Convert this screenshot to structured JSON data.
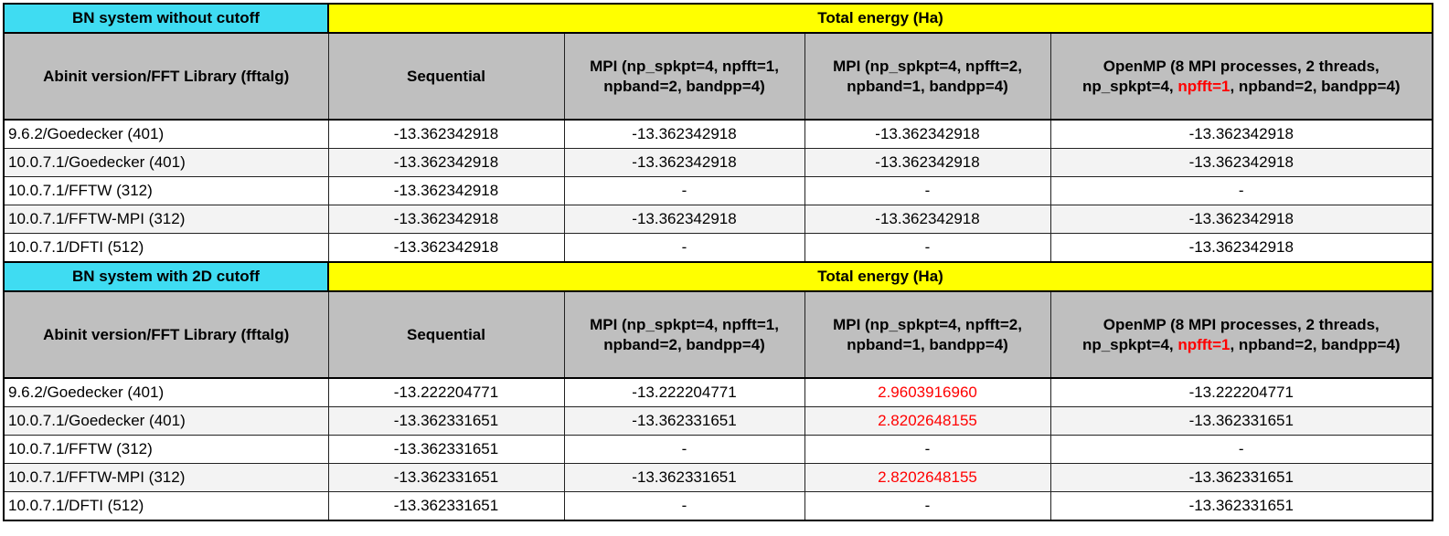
{
  "sections": [
    {
      "title": "BN system without cutoff",
      "group_header": "Total energy (Ha)",
      "columns": [
        [
          "Abinit version/FFT Library (fftalg)"
        ],
        [
          "Sequential"
        ],
        [
          "MPI (np_spkpt=4, npfft=1,",
          "npband=2, bandpp=4)"
        ],
        [
          "MPI (np_spkpt=4, npfft=2,",
          "npband=1, bandpp=4)"
        ],
        [
          "OpenMP (8 MPI processes, 2 threads,",
          [
            {
              "text": "np_spkpt=4, "
            },
            {
              "text": "npfft=1",
              "color": "#ff0000"
            },
            {
              "text": ", npband=2, bandpp=4)"
            }
          ]
        ]
      ],
      "rows": [
        [
          "9.6.2/Goedecker (401)",
          "-13.362342918",
          "-13.362342918",
          "-13.362342918",
          "-13.362342918"
        ],
        [
          "10.0.7.1/Goedecker (401)",
          "-13.362342918",
          "-13.362342918",
          "-13.362342918",
          "-13.362342918"
        ],
        [
          "10.0.7.1/FFTW (312)",
          "-13.362342918",
          "-",
          "-",
          "-"
        ],
        [
          "10.0.7.1/FFTW-MPI (312)",
          "-13.362342918",
          "-13.362342918",
          "-13.362342918",
          "-13.362342918"
        ],
        [
          "10.0.7.1/DFTI (512)",
          "-13.362342918",
          "-",
          "-",
          "-13.362342918"
        ]
      ]
    },
    {
      "title": "BN system with 2D cutoff",
      "group_header": "Total energy (Ha)",
      "columns": [
        [
          "Abinit version/FFT Library (fftalg)"
        ],
        [
          "Sequential"
        ],
        [
          "MPI (np_spkpt=4, npfft=1,",
          "npband=2, bandpp=4)"
        ],
        [
          "MPI (np_spkpt=4, npfft=2,",
          "npband=1, bandpp=4)"
        ],
        [
          "OpenMP (8 MPI processes, 2 threads,",
          [
            {
              "text": "np_spkpt=4, "
            },
            {
              "text": "npfft=1",
              "color": "#ff0000"
            },
            {
              "text": ", npband=2, bandpp=4)"
            }
          ]
        ]
      ],
      "rows": [
        [
          "9.6.2/Goedecker (401)",
          "-13.222204771",
          "-13.222204771",
          {
            "text": "2.9603916960",
            "color": "#ff0000"
          },
          "-13.222204771"
        ],
        [
          "10.0.7.1/Goedecker (401)",
          "-13.362331651",
          "-13.362331651",
          {
            "text": "2.8202648155",
            "color": "#ff0000"
          },
          "-13.362331651"
        ],
        [
          "10.0.7.1/FFTW (312)",
          "-13.362331651",
          "-",
          "-",
          "-"
        ],
        [
          "10.0.7.1/FFTW-MPI (312)",
          "-13.362331651",
          "-13.362331651",
          {
            "text": "2.8202648155",
            "color": "#ff0000"
          },
          "-13.362331651"
        ],
        [
          "10.0.7.1/DFTI (512)",
          "-13.362331651",
          "-",
          "-",
          "-13.362331651"
        ]
      ]
    }
  ]
}
